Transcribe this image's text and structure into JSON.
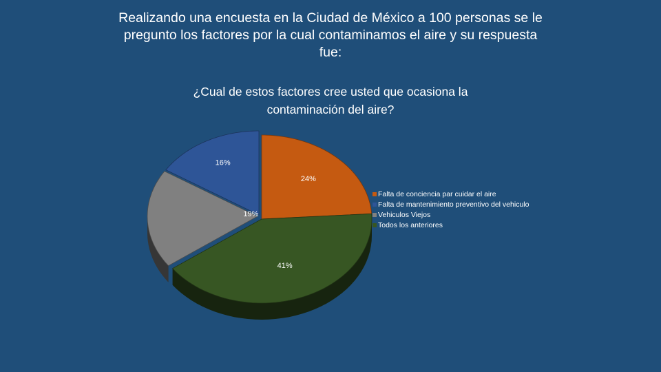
{
  "slide": {
    "title_lines": [
      "Realizando una encuesta en la Ciudad de México a 100 personas se le",
      "pregunto los factores por la cual contaminamos el aire y su respuesta",
      "fue:"
    ],
    "background_color": "#1f4e79"
  },
  "chart_data": {
    "type": "pie",
    "style": "3d",
    "title_lines": [
      "¿Cual de estos factores cree usted que ocasiona la",
      "contaminación del aire?"
    ],
    "slices": [
      {
        "name": "Falta de conciencia par cuidar el aire",
        "value": 24,
        "label": "24%",
        "color": "#c55a11"
      },
      {
        "name": "Todos los anteriores",
        "value": 41,
        "label": "41%",
        "color": "#375623"
      },
      {
        "name": "Vehiculos Viejos",
        "value": 19,
        "label": "19%",
        "color": "#808080"
      },
      {
        "name": "Falta de mantenimiento preventivo del vehiculo",
        "value": 16,
        "label": "16%",
        "color": "#2e5597"
      }
    ],
    "legend_order": [
      "Falta de conciencia par cuidar el aire",
      "Falta de mantenimiento preventivo del vehiculo",
      "Vehiculos Viejos",
      "Todos los anteriores"
    ],
    "legend_position": "right"
  }
}
